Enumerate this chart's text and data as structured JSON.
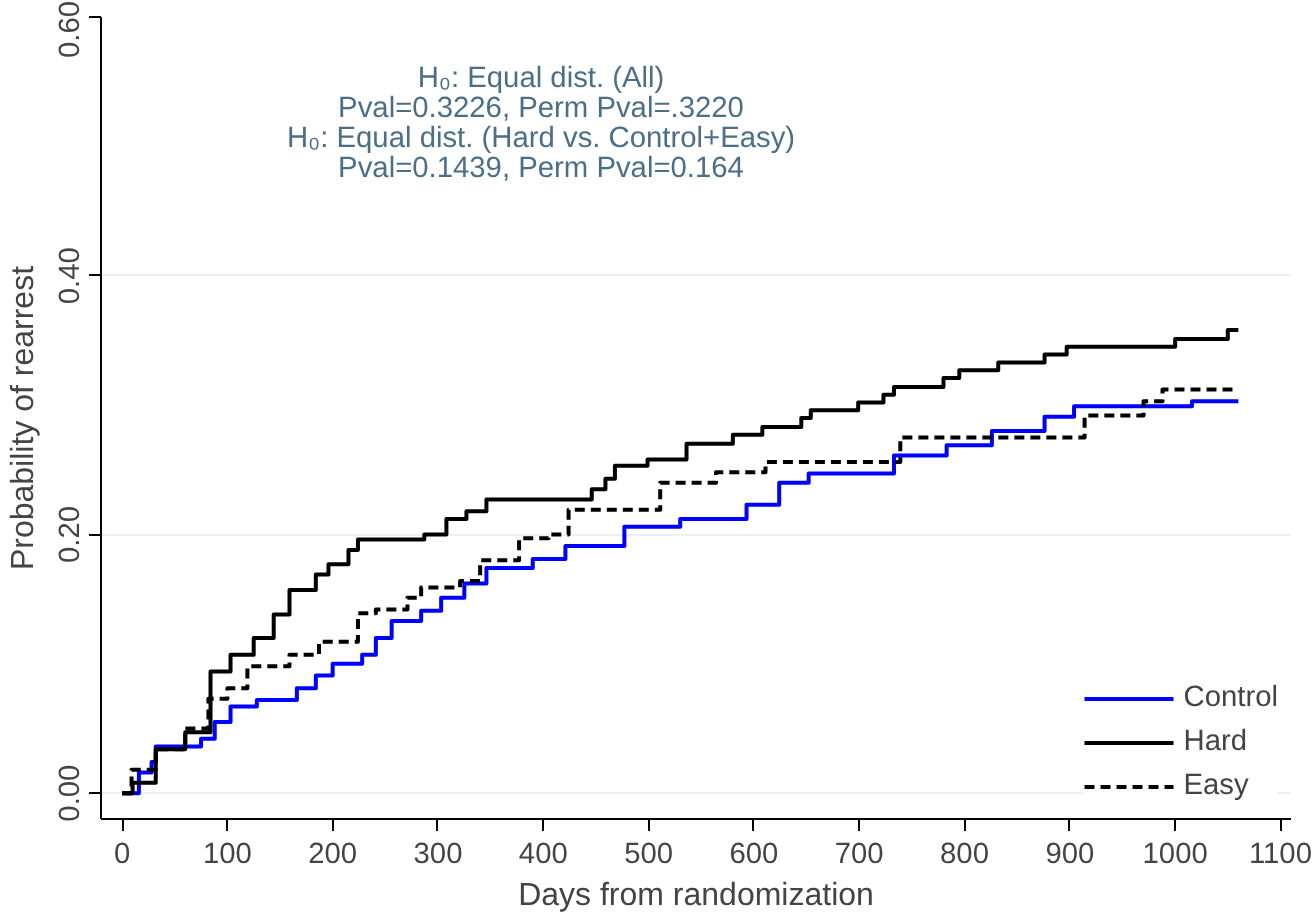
{
  "chart_data": {
    "type": "step",
    "xlabel": "Days from randomization",
    "ylabel": "Probability of rearrest",
    "annotations": [
      "H₀: Equal dist. (All)",
      "Pval=0.3226, Perm Pval=.3220",
      "H₀: Equal dist. (Hard vs. Control+Easy)",
      "Pval=0.1439, Perm Pval=0.164"
    ],
    "xlim": [
      -20,
      1110
    ],
    "ylim": [
      -0.02,
      0.6
    ],
    "xticks": [
      0,
      100,
      200,
      300,
      400,
      500,
      600,
      700,
      800,
      900,
      1000,
      1100
    ],
    "yticks": [
      {
        "value": 0,
        "label": "0.00"
      },
      {
        "value": 0.2,
        "label": "0.20"
      },
      {
        "value": 0.4,
        "label": "0.40"
      },
      {
        "value": 0.6,
        "label": "0.60"
      }
    ],
    "grid": "y",
    "legend": "bottom right",
    "series": [
      {
        "name": "Control",
        "color": "#0000ff",
        "line_style": "solid",
        "x": [
          0,
          16,
          28,
          32,
          75,
          88,
          103,
          128,
          166,
          184,
          200,
          228,
          241,
          256,
          284,
          303,
          325,
          346,
          390,
          421,
          477,
          530,
          593,
          624,
          652,
          733,
          783,
          826,
          876,
          904,
          1016,
          1060
        ],
        "values": [
          0,
          0.016,
          0.024,
          0.036,
          0.042,
          0.055,
          0.067,
          0.072,
          0.081,
          0.091,
          0.1,
          0.107,
          0.12,
          0.133,
          0.141,
          0.151,
          0.162,
          0.174,
          0.181,
          0.191,
          0.206,
          0.212,
          0.223,
          0.24,
          0.247,
          0.261,
          0.269,
          0.28,
          0.291,
          0.299,
          0.303,
          0.303
        ]
      },
      {
        "name": "Hard",
        "color": "#000000",
        "line_style": "solid",
        "x": [
          0,
          10,
          32,
          60,
          84,
          103,
          125,
          144,
          159,
          184,
          196,
          215,
          224,
          287,
          308,
          327,
          346,
          446,
          459,
          468,
          499,
          536,
          580,
          608,
          645,
          654,
          699,
          723,
          733,
          780,
          795,
          832,
          876,
          897,
          1000,
          1050,
          1060
        ],
        "values": [
          0,
          0.008,
          0.034,
          0.047,
          0.094,
          0.107,
          0.12,
          0.138,
          0.157,
          0.169,
          0.177,
          0.188,
          0.196,
          0.2,
          0.212,
          0.218,
          0.227,
          0.235,
          0.243,
          0.253,
          0.258,
          0.27,
          0.277,
          0.283,
          0.29,
          0.296,
          0.302,
          0.308,
          0.314,
          0.321,
          0.327,
          0.333,
          0.339,
          0.345,
          0.351,
          0.358,
          0.358
        ]
      },
      {
        "name": "Easy",
        "color": "#000000",
        "line_style": "dashed",
        "x": [
          0,
          9,
          32,
          60,
          82,
          100,
          119,
          159,
          187,
          224,
          241,
          271,
          284,
          321,
          340,
          377,
          405,
          424,
          511,
          564,
          611,
          739,
          914,
          970,
          988,
          1060
        ],
        "values": [
          0,
          0.018,
          0.034,
          0.05,
          0.073,
          0.081,
          0.098,
          0.107,
          0.117,
          0.139,
          0.142,
          0.151,
          0.159,
          0.164,
          0.18,
          0.197,
          0.2,
          0.219,
          0.24,
          0.248,
          0.256,
          0.275,
          0.292,
          0.303,
          0.312,
          0.312
        ]
      }
    ]
  }
}
